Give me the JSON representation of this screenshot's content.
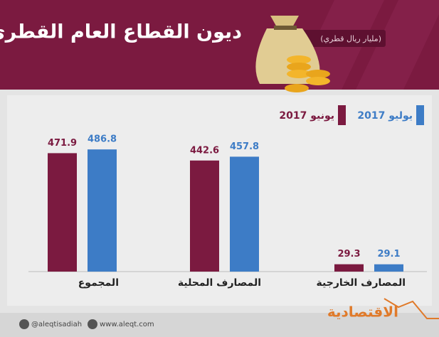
{
  "chart_data": {
    "type": "bar",
    "title": "ديون القطاع العام القطري",
    "subtitle": "(مليار ريال قطري)",
    "categories": [
      "المجموع",
      "المصارف المحلية",
      "المصارف الخارجية"
    ],
    "series": [
      {
        "name": "يونيو 2017",
        "color": "#7b1a40",
        "values": [
          471.9,
          442.6,
          29.3
        ]
      },
      {
        "name": "يوليو 2017",
        "color": "#3d7cc6",
        "values": [
          486.8,
          457.8,
          29.1
        ]
      }
    ],
    "footer": {
      "twitter": "@aleqtisadiah",
      "website": "www.aleqt.com",
      "logo": "الاقتصادية"
    }
  }
}
